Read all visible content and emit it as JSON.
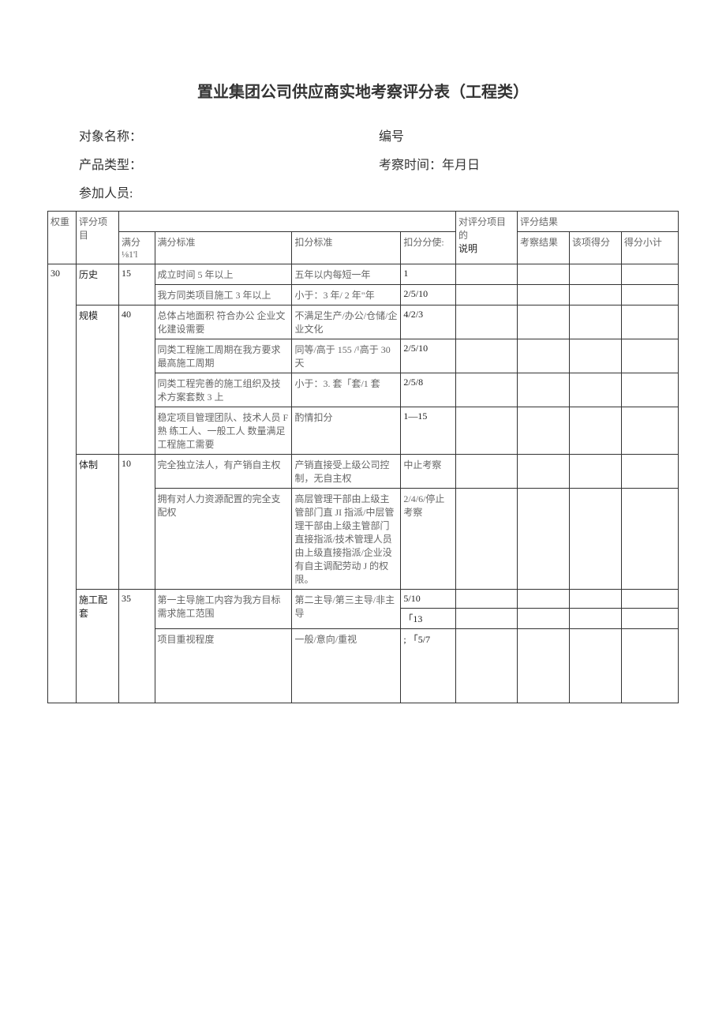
{
  "title": "置业集团公司供应商实地考察评分表（工程类）",
  "header": {
    "object_label": "对象名称：",
    "number_label": "编号",
    "product_label": "产品类型：",
    "inspect_label": "考察时间：年月日",
    "participants_label": "参加人员:"
  },
  "thead": {
    "weight": "权重",
    "score_item": "评分项目",
    "full_score": "满分",
    "full_score_sub": "⅛1'l",
    "standard": "满分标准",
    "deduct_standard": "扣分标准",
    "deduct_make": "扣分分使:",
    "purpose": "对评分项目的",
    "purpose2": "说明",
    "result": "评分结果",
    "inspect_result": "考察结果",
    "item_score": "该项得分",
    "subtotal": "得分小计"
  },
  "rows": [
    {
      "weight": "30",
      "item": "历史",
      "score": "15",
      "std": "成立时间 5 年以上",
      "deduct": "五年以内每短一年",
      "val": "1"
    },
    {
      "std": "我方同类项目施工 3 年以上",
      "deduct": "小于：3 年/ 2 年\"年",
      "val": "2/5/10"
    },
    {
      "item": "规模",
      "score": "40",
      "std": "总体占地面积 符合办公 企业文化建设需要",
      "deduct": "不满足生产/办公/仓储/企业文化",
      "val": "4/2/3"
    },
    {
      "std": "同类工程施工周期在我方要求最高施工周期",
      "deduct": "同等/高于 155 /¹高于 30 天",
      "val": "2/5/10"
    },
    {
      "std": "同类工程完善的施工组织及技术方案套数 3 上",
      "deduct": "小于：3. 套「套/1 套",
      "val": "2/5/8"
    },
    {
      "std": "稳定项目管理团队、技术人员 F 熟 练工人、一般工人 数量满足工程施工需要",
      "deduct": "酌情扣分",
      "val": "1—15"
    },
    {
      "item": "体制",
      "score": "10",
      "std": "完全独立法人，有产销自主权",
      "deduct": "产销直接受上级公司控制，无自主权",
      "val": "中止考察"
    },
    {
      "std": "拥有对人力资源配置的完全支配权",
      "deduct": "高层管理干部由上级主管部门直 JI 指派/中层管理干部由上级主管部门直接指派/技术管理人员由上级直接指派/企业没有自主调配劳动 J 的权限。",
      "val": "2/4/6/停止考察"
    },
    {
      "item": "施工配套",
      "score": "35",
      "std": "第一主导施工内容为我方目标需求施工范围",
      "deduct": "第二主导/第三主导/非主导",
      "val": "5/10"
    },
    {
      "val": "「13"
    },
    {
      "std": "项目重视程度",
      "deduct": "一般/意向/重视",
      "val": ";  「5/7"
    }
  ]
}
